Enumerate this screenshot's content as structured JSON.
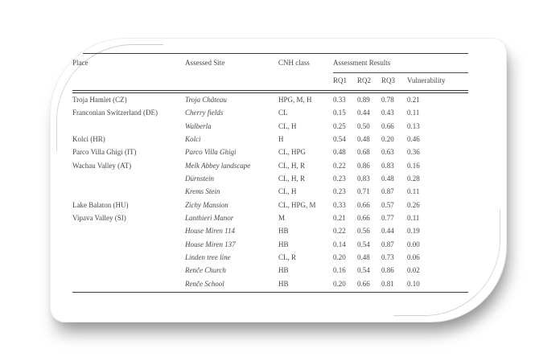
{
  "page": {
    "bg_color": "#ffffff",
    "text_color": "#474747",
    "rule_color": "#3c3c3c"
  },
  "table": {
    "columns": {
      "place": "Place",
      "site": "Assessed Site",
      "cnh": "CNH class",
      "results": "Assessment Results"
    },
    "result_columns": [
      "RQ1",
      "RQ2",
      "RQ3",
      "Vulnerability"
    ],
    "rows": [
      {
        "place": "Troja Hamlet (CZ)",
        "site": "Troja Château",
        "cnh": "HPG, M, H",
        "rq1": "0.33",
        "rq2": "0.89",
        "rq3": "0.78",
        "vulnerability": "0.21"
      },
      {
        "place": "Franconian Switzerland (DE)",
        "site": "Cherry fields",
        "cnh": "CL",
        "rq1": "0.15",
        "rq2": "0.44",
        "rq3": "0.43",
        "vulnerability": "0.11"
      },
      {
        "place": "",
        "site": "Walberla",
        "cnh": "CL, H",
        "rq1": "0.25",
        "rq2": "0.50",
        "rq3": "0.66",
        "vulnerability": "0.13"
      },
      {
        "place": "Kolci (HR)",
        "site": "Kolci",
        "cnh": "H",
        "rq1": "0.54",
        "rq2": "0.48",
        "rq3": "0.20",
        "vulnerability": "0.46"
      },
      {
        "place": "Parco Villa Ghigi (IT)",
        "site": "Parco Villa Ghigi",
        "cnh": "CL, HPG",
        "rq1": "0.48",
        "rq2": "0.68",
        "rq3": "0.63",
        "vulnerability": "0.36"
      },
      {
        "place": "Wachau Valley (AT)",
        "site": "Melk Abbey landscape",
        "cnh": "CL, H, R",
        "rq1": "0.22",
        "rq2": "0.86",
        "rq3": "0.83",
        "vulnerability": "0.16"
      },
      {
        "place": "",
        "site": "Dürnstein",
        "cnh": "CL, H, R",
        "rq1": "0.23",
        "rq2": "0.83",
        "rq3": "0.48",
        "vulnerability": "0.28"
      },
      {
        "place": "",
        "site": "Krems Stein",
        "cnh": "CL, H",
        "rq1": "0.23",
        "rq2": "0.71",
        "rq3": "0.87",
        "vulnerability": "0.11"
      },
      {
        "place": "Lake Balaton (HU)",
        "site": "Zichy Mansion",
        "cnh": "CL, HPG, M",
        "rq1": "0.33",
        "rq2": "0.66",
        "rq3": "0.57",
        "vulnerability": "0.26"
      },
      {
        "place": "Vipava Valley (SI)",
        "site": "Lanthieri Manor",
        "cnh": "M",
        "rq1": "0.21",
        "rq2": "0.66",
        "rq3": "0.77",
        "vulnerability": "0.11"
      },
      {
        "place": "",
        "site": "House Miren 114",
        "cnh": "HB",
        "rq1": "0.22",
        "rq2": "0.56",
        "rq3": "0.44",
        "vulnerability": "0.19"
      },
      {
        "place": "",
        "site": "House Miren 137",
        "cnh": "HB",
        "rq1": "0.14",
        "rq2": "0.54",
        "rq3": "0.87",
        "vulnerability": "0.00"
      },
      {
        "place": "",
        "site": "Linden tree line",
        "cnh": "CL, R",
        "rq1": "0.20",
        "rq2": "0.48",
        "rq3": "0.73",
        "vulnerability": "0.06"
      },
      {
        "place": "",
        "site": "Renče Church",
        "cnh": "HB",
        "rq1": "0.16",
        "rq2": "0.54",
        "rq3": "0.86",
        "vulnerability": "0.02"
      },
      {
        "place": "",
        "site": "Renče School",
        "cnh": "HB",
        "rq1": "0.20",
        "rq2": "0.66",
        "rq3": "0.81",
        "vulnerability": "0.10"
      }
    ]
  }
}
